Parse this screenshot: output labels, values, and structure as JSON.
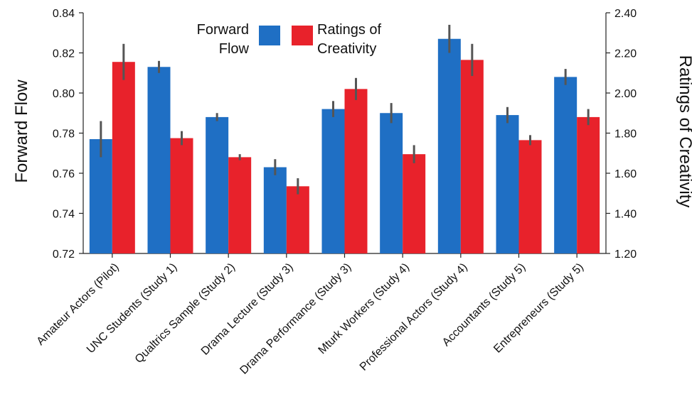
{
  "chart_data": {
    "type": "bar",
    "categories": [
      "Amateur Actors (Pilot)",
      "UNC Students (Study 1)",
      "Qualtrics Sample (Study 2)",
      "Drama Lecture (Study 3)",
      "Drama Performance (Study 3)",
      "Mturk Workers (Study 4)",
      "Professional Actors (Study 4)",
      "Accountants (Study 5)",
      "Entrepreneurs (Study 5)"
    ],
    "series": [
      {
        "name": "Forward Flow",
        "axis": "left",
        "color": "#1f6fc4",
        "values": [
          0.777,
          0.813,
          0.788,
          0.763,
          0.792,
          0.79,
          0.827,
          0.789,
          0.808
        ],
        "error": [
          0.009,
          0.003,
          0.002,
          0.004,
          0.004,
          0.005,
          0.007,
          0.004,
          0.004
        ]
      },
      {
        "name": "Ratings of Creativity",
        "axis": "right",
        "color": "#e8222b",
        "values": [
          2.155,
          1.775,
          1.68,
          1.535,
          2.02,
          1.695,
          2.165,
          1.765,
          1.88
        ],
        "error": [
          0.09,
          0.035,
          0.015,
          0.04,
          0.055,
          0.045,
          0.08,
          0.025,
          0.04
        ]
      }
    ],
    "y_left": {
      "label": "Forward Flow",
      "lim": [
        0.72,
        0.84
      ],
      "ticks": [
        "0.72",
        "0.74",
        "0.76",
        "0.78",
        "0.80",
        "0.82",
        "0.84"
      ]
    },
    "y_right": {
      "label": "Ratings of Creativity",
      "lim": [
        1.2,
        2.4
      ],
      "ticks": [
        "1.20",
        "1.40",
        "1.60",
        "1.80",
        "2.00",
        "2.20",
        "2.40"
      ]
    },
    "legend": {
      "placement": "top-center",
      "entries": [
        {
          "lines": [
            "Forward",
            "Flow"
          ],
          "color": "#1f6fc4"
        },
        {
          "lines": [
            "Ratings of",
            "Creativity"
          ],
          "color": "#e8222b"
        }
      ]
    },
    "grid": false,
    "error_bar_color": "#555555"
  }
}
